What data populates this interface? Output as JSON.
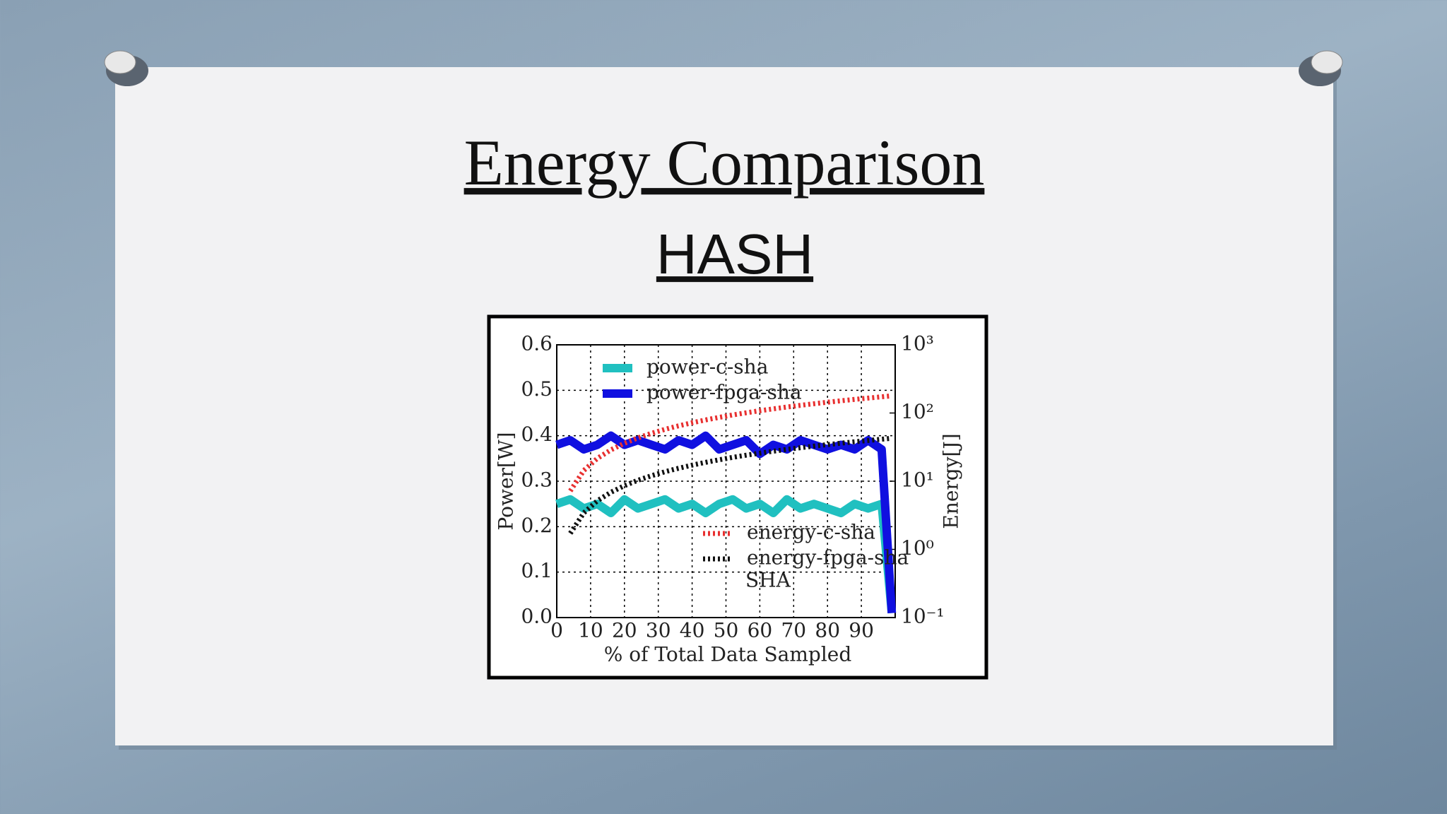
{
  "chart_data": {
    "type": "line",
    "title": "Energy Comparison",
    "subtitle": "HASH",
    "annotation": "SHA",
    "xlabel": "% of Total Data Sampled",
    "ylabel": "Power[W]",
    "y2label": "Energy[J]",
    "x": [
      0,
      4,
      8,
      12,
      16,
      20,
      24,
      28,
      32,
      36,
      40,
      44,
      48,
      52,
      56,
      60,
      64,
      68,
      72,
      76,
      80,
      84,
      88,
      92,
      96,
      99
    ],
    "series": [
      {
        "name": "power-c-sha",
        "color": "#20c0c0",
        "linestyle": "solid",
        "values": [
          0.25,
          0.26,
          0.24,
          0.25,
          0.23,
          0.26,
          0.24,
          0.25,
          0.26,
          0.24,
          0.25,
          0.23,
          0.25,
          0.26,
          0.24,
          0.25,
          0.23,
          0.26,
          0.24,
          0.25,
          0.24,
          0.23,
          0.25,
          0.24,
          0.25,
          0.01
        ]
      },
      {
        "name": "power-fpga-sha",
        "color": "#1010e0",
        "linestyle": "solid",
        "values": [
          0.38,
          0.39,
          0.37,
          0.38,
          0.4,
          0.38,
          0.39,
          0.38,
          0.37,
          0.39,
          0.38,
          0.4,
          0.37,
          0.38,
          0.39,
          0.36,
          0.38,
          0.37,
          0.39,
          0.38,
          0.37,
          0.38,
          0.37,
          0.39,
          0.37,
          0.01
        ]
      },
      {
        "name": "energy-c-sha",
        "color": "#e83030",
        "linestyle": "dotted",
        "axis": "y2",
        "values": [
          null,
          7.2,
          14.4,
          21.6,
          28.8,
          36,
          43.2,
          50.4,
          57.6,
          64.8,
          72,
          79.2,
          86.4,
          93.6,
          100.8,
          108,
          115.2,
          122.4,
          129.6,
          136.8,
          144,
          151.2,
          158.4,
          165.6,
          172.8,
          178.2
        ]
      },
      {
        "name": "energy-fpga-sha",
        "color": "#111111",
        "linestyle": "dotted",
        "axis": "y2",
        "values": [
          null,
          1.72,
          3.44,
          5.16,
          6.88,
          8.6,
          10.32,
          12.04,
          13.76,
          15.48,
          17.2,
          18.92,
          20.64,
          22.36,
          24.08,
          25.8,
          27.52,
          29.24,
          30.96,
          32.68,
          34.4,
          36.12,
          37.84,
          39.56,
          41.28,
          42.57
        ]
      }
    ],
    "xlim": [
      0,
      100
    ],
    "xticks": [
      0,
      10,
      20,
      30,
      40,
      50,
      60,
      70,
      80,
      90
    ],
    "ylim": [
      0,
      0.6
    ],
    "yticks": [
      {
        "value": 0,
        "label": "0.0"
      },
      0.1,
      0.2,
      0.3,
      0.4,
      0.5,
      0.6
    ],
    "y2lim": [
      0.1,
      1000
    ],
    "y2scale": "log",
    "y2ticks": [
      {
        "value": 0.1,
        "label": "10⁻¹"
      },
      {
        "value": 1,
        "label": "10⁰"
      },
      {
        "value": 10,
        "label": "10¹"
      },
      {
        "value": 100,
        "label": "10²"
      },
      {
        "value": 1000,
        "label": "10³"
      }
    ],
    "grid": true
  }
}
